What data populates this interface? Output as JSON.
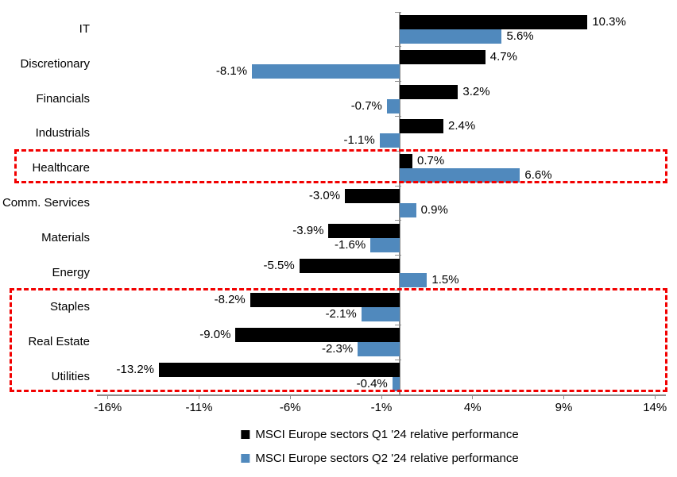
{
  "chart_data": {
    "type": "bar",
    "orientation": "horizontal",
    "title": "",
    "categories": [
      "IT",
      "Discretionary",
      "Financials",
      "Industrials",
      "Healthcare",
      "Comm. Services",
      "Materials",
      "Energy",
      "Staples",
      "Real Estate",
      "Utilities"
    ],
    "series": [
      {
        "name": "MSCI Europe sectors Q1 '24 relative performance",
        "color": "#000000",
        "values": [
          10.3,
          4.7,
          3.2,
          2.4,
          0.7,
          -3.0,
          -3.9,
          -5.5,
          -8.2,
          -9.0,
          -13.2
        ],
        "labels": [
          "10.3%",
          "4.7%",
          "3.2%",
          "2.4%",
          "0.7%",
          "-3.0%",
          "-3.9%",
          "-5.5%",
          "-8.2%",
          "-9.0%",
          "-13.2%"
        ]
      },
      {
        "name": "MSCI Europe sectors Q2 '24 relative performance",
        "color": "#5089BD",
        "values": [
          5.6,
          -8.1,
          -0.7,
          -1.1,
          6.6,
          0.9,
          -1.6,
          1.5,
          -2.1,
          -2.3,
          -0.4
        ],
        "labels": [
          "5.6%",
          "-8.1%",
          "-0.7%",
          "-1.1%",
          "6.6%",
          "0.9%",
          "-1.6%",
          "1.5%",
          "-2.1%",
          "-2.3%",
          "-0.4%"
        ]
      }
    ],
    "x_ticks": [
      {
        "value": -16,
        "label": "-16%"
      },
      {
        "value": -11,
        "label": "-11%"
      },
      {
        "value": -6,
        "label": "-6%"
      },
      {
        "value": -1,
        "label": "-1%"
      },
      {
        "value": 4,
        "label": "4%"
      },
      {
        "value": 9,
        "label": "9%"
      },
      {
        "value": 14,
        "label": "14%"
      }
    ],
    "xlim": [
      -16.6,
      14.6
    ],
    "grid": false,
    "data_labels": true,
    "legend_position": "bottom",
    "highlight_boxes": [
      {
        "first_category": "Healthcare",
        "last_category": "Healthcare"
      },
      {
        "first_category": "Staples",
        "last_category": "Utilities"
      }
    ],
    "highlight_color": "#f20000",
    "axis_color": "#8c8c8c"
  }
}
